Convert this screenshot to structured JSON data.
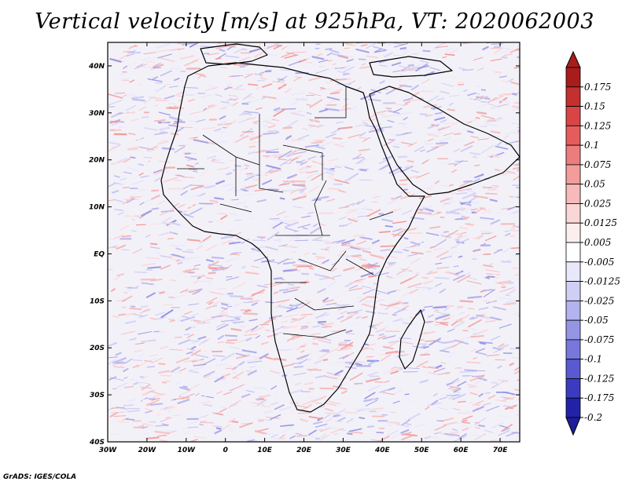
{
  "title": "Vertical velocity [m/s] at 925hPa, VT: 2020062003",
  "footer": "GrADS: IGES/COLA",
  "map": {
    "variable": "Vertical velocity",
    "units": "m/s",
    "level": "925hPa",
    "valid_time": "2020062003",
    "lon_range": [
      -30,
      75
    ],
    "lat_range": [
      -40,
      45
    ],
    "x_ticks": [
      {
        "value": -30,
        "label": "30W"
      },
      {
        "value": -20,
        "label": "20W"
      },
      {
        "value": -10,
        "label": "10W"
      },
      {
        "value": 0,
        "label": "0"
      },
      {
        "value": 10,
        "label": "10E"
      },
      {
        "value": 20,
        "label": "20E"
      },
      {
        "value": 30,
        "label": "30E"
      },
      {
        "value": 40,
        "label": "40E"
      },
      {
        "value": 50,
        "label": "50E"
      },
      {
        "value": 60,
        "label": "60E"
      },
      {
        "value": 70,
        "label": "70E"
      }
    ],
    "y_ticks": [
      {
        "value": 40,
        "label": "40N"
      },
      {
        "value": 30,
        "label": "30N"
      },
      {
        "value": 20,
        "label": "20N"
      },
      {
        "value": 10,
        "label": "10N"
      },
      {
        "value": 0,
        "label": "EQ"
      },
      {
        "value": -10,
        "label": "10S"
      },
      {
        "value": -20,
        "label": "20S"
      },
      {
        "value": -30,
        "label": "30S"
      },
      {
        "value": -40,
        "label": "40S"
      }
    ]
  },
  "colorbar": {
    "levels": [
      {
        "label": "0.175",
        "color": "#a91c1c"
      },
      {
        "label": "0.15",
        "color": "#c42f2f"
      },
      {
        "label": "0.125",
        "color": "#d94545"
      },
      {
        "label": "0.1",
        "color": "#e65c5c"
      },
      {
        "label": "0.075",
        "color": "#ed7d7d"
      },
      {
        "label": "0.05",
        "color": "#f29c9c"
      },
      {
        "label": "0.025",
        "color": "#f6baba"
      },
      {
        "label": "0.0125",
        "color": "#fad6d6"
      },
      {
        "label": "0.005",
        "color": "#fdeeee"
      },
      {
        "label": "-0.005",
        "color": "#ffffff"
      },
      {
        "label": "-0.0125",
        "color": "#e8e8fb"
      },
      {
        "label": "-0.025",
        "color": "#cfcff6"
      },
      {
        "label": "-0.05",
        "color": "#b3b3ef"
      },
      {
        "label": "-0.075",
        "color": "#9595e6"
      },
      {
        "label": "-0.1",
        "color": "#7777dc"
      },
      {
        "label": "-0.125",
        "color": "#5959d1"
      },
      {
        "label": "-0.175",
        "color": "#3b3bc2"
      },
      {
        "label": "-0.2",
        "color": "#2222a8"
      }
    ],
    "top_arrow_color": "#a91c1c",
    "bottom_arrow_color": "#1e1e9c"
  }
}
